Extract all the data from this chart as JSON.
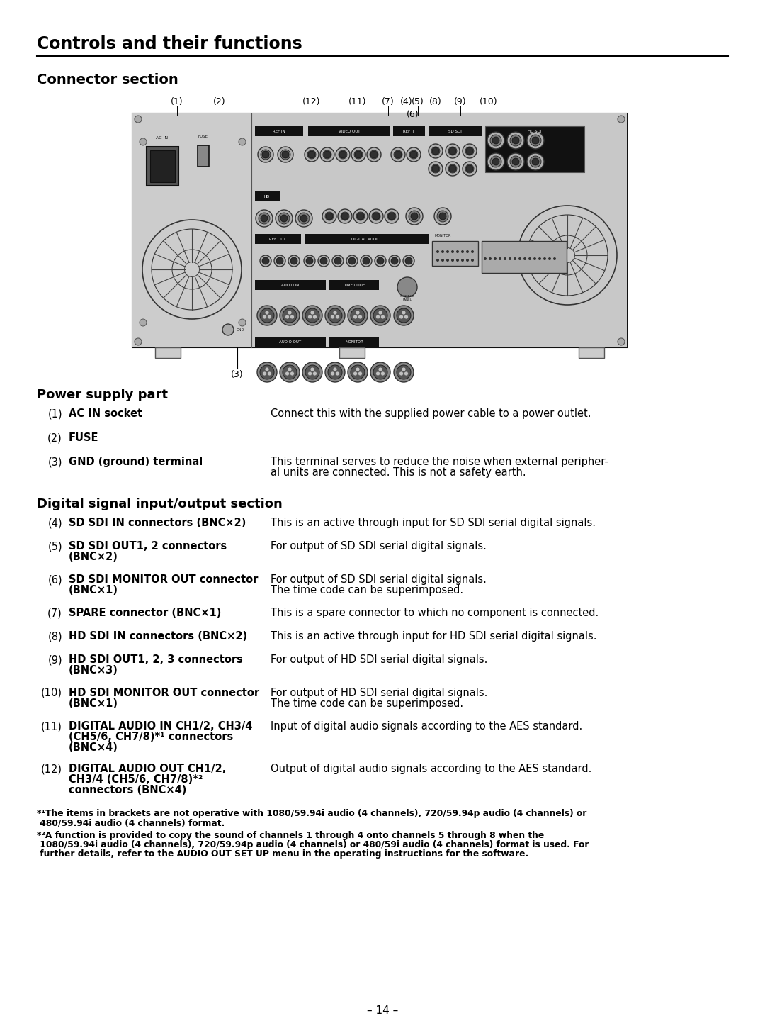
{
  "page_title": "Controls and their functions",
  "section1_title": "Connector section",
  "section2_title": "Power supply part",
  "section3_title": "Digital signal input/output section",
  "power_items": [
    {
      "num": "(1)",
      "label": "AC IN socket",
      "label2": "",
      "desc": "Connect this with the supplied power cable to a power outlet.",
      "desc2": ""
    },
    {
      "num": "(2)",
      "label": "FUSE",
      "label2": "",
      "desc": "",
      "desc2": ""
    },
    {
      "num": "(3)",
      "label": "GND (ground) terminal",
      "label2": "",
      "desc": "This terminal serves to reduce the noise when external peripher-",
      "desc2": "al units are connected. This is not a safety earth."
    }
  ],
  "digital_items": [
    {
      "num": "(4)",
      "label": "SD SDI IN connectors (BNC×2)",
      "label2": "",
      "label3": "",
      "desc": "This is an active through input for SD SDI serial digital signals.",
      "desc2": ""
    },
    {
      "num": "(5)",
      "label": "SD SDI OUT1, 2 connectors",
      "label2": "(BNC×2)",
      "label3": "",
      "desc": "For output of SD SDI serial digital signals.",
      "desc2": ""
    },
    {
      "num": "(6)",
      "label": "SD SDI MONITOR OUT connector",
      "label2": "(BNC×1)",
      "label3": "",
      "desc": "For output of SD SDI serial digital signals.",
      "desc2": "The time code can be superimposed."
    },
    {
      "num": "(7)",
      "label": "SPARE connector (BNC×1)",
      "label2": "",
      "label3": "",
      "desc": "This is a spare connector to which no component is connected.",
      "desc2": ""
    },
    {
      "num": "(8)",
      "label": "HD SDI IN connectors (BNC×2)",
      "label2": "",
      "label3": "",
      "desc": "This is an active through input for HD SDI serial digital signals.",
      "desc2": ""
    },
    {
      "num": "(9)",
      "label": "HD SDI OUT1, 2, 3 connectors",
      "label2": "(BNC×3)",
      "label3": "",
      "desc": "For output of HD SDI serial digital signals.",
      "desc2": ""
    },
    {
      "num": "(10)",
      "label": "HD SDI MONITOR OUT connector",
      "label2": "(BNC×1)",
      "label3": "",
      "desc": "For output of HD SDI serial digital signals.",
      "desc2": "The time code can be superimposed."
    },
    {
      "num": "(11)",
      "label": "DIGITAL AUDIO IN CH1/2, CH3/4",
      "label2": "(CH5/6, CH7/8)*¹ connectors",
      "label3": "(BNC×4)",
      "desc": "Input of digital audio signals according to the AES standard.",
      "desc2": ""
    },
    {
      "num": "(12)",
      "label": "DIGITAL AUDIO OUT CH1/2,",
      "label2": "CH3/4 (CH5/6, CH7/8)*²",
      "label3": "connectors (BNC×4)",
      "desc": "Output of digital audio signals according to the AES standard.",
      "desc2": ""
    }
  ],
  "footnote1a": "*¹The items in brackets are not operative with 1080/59.94i audio (4 channels), 720/59.94p audio (4 channels) or",
  "footnote1b": " 480/59.94i audio (4 channels) format.",
  "footnote2a": "*²A function is provided to copy the sound of channels 1 through 4 onto channels 5 through 8 when the",
  "footnote2b": " 1080/59.94i audio (4 channels), 720/59.94p audio (4 channels) or 480/59i audio (4 channels) format is used. For",
  "footnote2c": " further details, refer to the AUDIO OUT SET UP menu in the operating instructions for the software.",
  "page_number": "– 14 –",
  "bg_color": "#ffffff",
  "text_color": "#000000"
}
